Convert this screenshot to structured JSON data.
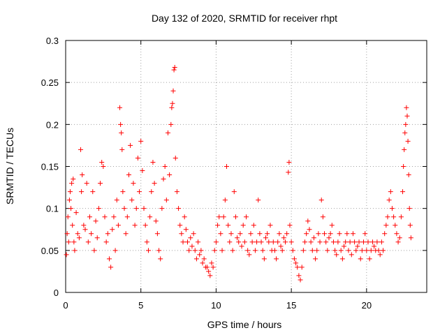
{
  "chart_data": {
    "type": "scatter",
    "title": "Day 132 of 2020, SRMTID for receiver rhpt",
    "xlabel": "GPS time / hours",
    "ylabel": "SRMTID / TECUs",
    "xlim": [
      0,
      24
    ],
    "ylim": [
      0,
      0.3
    ],
    "x_ticks": [
      0,
      5,
      10,
      15,
      20
    ],
    "x_tick_labels": [
      "0",
      "5",
      "10",
      "15",
      "20"
    ],
    "y_ticks": [
      0,
      0.05,
      0.1,
      0.15,
      0.2,
      0.25,
      0.3
    ],
    "y_tick_labels": [
      "0",
      "0.05",
      "0.1",
      "0.15",
      "0.2",
      "0.25",
      "0.3"
    ],
    "grid": true,
    "marker": "plus",
    "color": "#ff0000",
    "series": [
      {
        "name": "SRMTID",
        "points": [
          [
            0.05,
            0.045
          ],
          [
            0.1,
            0.07
          ],
          [
            0.15,
            0.09
          ],
          [
            0.2,
            0.06
          ],
          [
            0.25,
            0.11
          ],
          [
            0.3,
            0.12
          ],
          [
            0.35,
            0.1
          ],
          [
            0.4,
            0.13
          ],
          [
            0.45,
            0.08
          ],
          [
            0.5,
            0.135
          ],
          [
            0.55,
            0.06
          ],
          [
            0.6,
            0.05
          ],
          [
            0.7,
            0.095
          ],
          [
            0.8,
            0.07
          ],
          [
            0.9,
            0.065
          ],
          [
            1.0,
            0.17
          ],
          [
            1.05,
            0.12
          ],
          [
            1.1,
            0.14
          ],
          [
            1.2,
            0.08
          ],
          [
            1.3,
            0.075
          ],
          [
            1.4,
            0.13
          ],
          [
            1.5,
            0.06
          ],
          [
            1.6,
            0.09
          ],
          [
            1.7,
            0.07
          ],
          [
            1.8,
            0.12
          ],
          [
            1.9,
            0.05
          ],
          [
            2.0,
            0.085
          ],
          [
            2.1,
            0.065
          ],
          [
            2.2,
            0.1
          ],
          [
            2.3,
            0.13
          ],
          [
            2.4,
            0.155
          ],
          [
            2.5,
            0.15
          ],
          [
            2.6,
            0.09
          ],
          [
            2.7,
            0.06
          ],
          [
            2.8,
            0.07
          ],
          [
            2.9,
            0.04
          ],
          [
            3.0,
            0.03
          ],
          [
            3.1,
            0.075
          ],
          [
            3.2,
            0.09
          ],
          [
            3.3,
            0.05
          ],
          [
            3.4,
            0.11
          ],
          [
            3.5,
            0.08
          ],
          [
            3.6,
            0.22
          ],
          [
            3.65,
            0.2
          ],
          [
            3.7,
            0.19
          ],
          [
            3.75,
            0.17
          ],
          [
            3.8,
            0.12
          ],
          [
            3.9,
            0.1
          ],
          [
            4.0,
            0.07
          ],
          [
            4.1,
            0.09
          ],
          [
            4.2,
            0.14
          ],
          [
            4.3,
            0.175
          ],
          [
            4.4,
            0.11
          ],
          [
            4.5,
            0.13
          ],
          [
            4.6,
            0.08
          ],
          [
            4.7,
            0.1
          ],
          [
            4.8,
            0.16
          ],
          [
            4.9,
            0.12
          ],
          [
            5.0,
            0.18
          ],
          [
            5.1,
            0.145
          ],
          [
            5.2,
            0.1
          ],
          [
            5.3,
            0.08
          ],
          [
            5.4,
            0.06
          ],
          [
            5.5,
            0.05
          ],
          [
            5.6,
            0.09
          ],
          [
            5.7,
            0.12
          ],
          [
            5.8,
            0.155
          ],
          [
            5.9,
            0.13
          ],
          [
            6.0,
            0.085
          ],
          [
            6.1,
            0.07
          ],
          [
            6.2,
            0.05
          ],
          [
            6.3,
            0.04
          ],
          [
            6.4,
            0.1
          ],
          [
            6.5,
            0.135
          ],
          [
            6.6,
            0.15
          ],
          [
            6.7,
            0.11
          ],
          [
            6.8,
            0.19
          ],
          [
            6.9,
            0.14
          ],
          [
            7.0,
            0.2
          ],
          [
            7.05,
            0.22
          ],
          [
            7.1,
            0.225
          ],
          [
            7.15,
            0.24
          ],
          [
            7.2,
            0.265
          ],
          [
            7.25,
            0.268
          ],
          [
            7.3,
            0.16
          ],
          [
            7.4,
            0.12
          ],
          [
            7.5,
            0.1
          ],
          [
            7.6,
            0.08
          ],
          [
            7.7,
            0.07
          ],
          [
            7.8,
            0.06
          ],
          [
            7.9,
            0.09
          ],
          [
            8.0,
            0.075
          ],
          [
            8.1,
            0.06
          ],
          [
            8.2,
            0.05
          ],
          [
            8.3,
            0.065
          ],
          [
            8.4,
            0.055
          ],
          [
            8.5,
            0.07
          ],
          [
            8.6,
            0.05
          ],
          [
            8.7,
            0.04
          ],
          [
            8.8,
            0.06
          ],
          [
            8.9,
            0.045
          ],
          [
            9.0,
            0.05
          ],
          [
            9.1,
            0.035
          ],
          [
            9.2,
            0.04
          ],
          [
            9.3,
            0.03
          ],
          [
            9.4,
            0.03
          ],
          [
            9.5,
            0.025
          ],
          [
            9.6,
            0.02
          ],
          [
            9.7,
            0.035
          ],
          [
            9.8,
            0.03
          ],
          [
            9.9,
            0.05
          ],
          [
            10.0,
            0.06
          ],
          [
            10.1,
            0.08
          ],
          [
            10.2,
            0.09
          ],
          [
            10.3,
            0.07
          ],
          [
            10.4,
            0.05
          ],
          [
            10.5,
            0.09
          ],
          [
            10.6,
            0.11
          ],
          [
            10.7,
            0.15
          ],
          [
            10.8,
            0.08
          ],
          [
            10.9,
            0.06
          ],
          [
            11.0,
            0.07
          ],
          [
            11.1,
            0.05
          ],
          [
            11.2,
            0.12
          ],
          [
            11.3,
            0.09
          ],
          [
            11.4,
            0.065
          ],
          [
            11.5,
            0.06
          ],
          [
            11.6,
            0.07
          ],
          [
            11.7,
            0.055
          ],
          [
            11.8,
            0.08
          ],
          [
            11.9,
            0.06
          ],
          [
            12.0,
            0.09
          ],
          [
            12.1,
            0.05
          ],
          [
            12.2,
            0.045
          ],
          [
            12.3,
            0.07
          ],
          [
            12.4,
            0.06
          ],
          [
            12.5,
            0.08
          ],
          [
            12.6,
            0.05
          ],
          [
            12.7,
            0.06
          ],
          [
            12.8,
            0.11
          ],
          [
            12.9,
            0.07
          ],
          [
            13.0,
            0.06
          ],
          [
            13.1,
            0.05
          ],
          [
            13.2,
            0.04
          ],
          [
            13.3,
            0.065
          ],
          [
            13.4,
            0.07
          ],
          [
            13.5,
            0.06
          ],
          [
            13.6,
            0.08
          ],
          [
            13.7,
            0.05
          ],
          [
            13.8,
            0.06
          ],
          [
            13.9,
            0.05
          ],
          [
            14.0,
            0.04
          ],
          [
            14.1,
            0.06
          ],
          [
            14.2,
            0.07
          ],
          [
            14.3,
            0.055
          ],
          [
            14.4,
            0.05
          ],
          [
            14.5,
            0.065
          ],
          [
            14.6,
            0.06
          ],
          [
            14.7,
            0.07
          ],
          [
            14.8,
            0.143
          ],
          [
            14.85,
            0.155
          ],
          [
            14.9,
            0.08
          ],
          [
            15.0,
            0.06
          ],
          [
            15.1,
            0.05
          ],
          [
            15.2,
            0.04
          ],
          [
            15.3,
            0.035
          ],
          [
            15.4,
            0.03
          ],
          [
            15.5,
            0.02
          ],
          [
            15.6,
            0.015
          ],
          [
            15.7,
            0.03
          ],
          [
            15.8,
            0.05
          ],
          [
            15.9,
            0.06
          ],
          [
            16.0,
            0.07
          ],
          [
            16.1,
            0.085
          ],
          [
            16.2,
            0.075
          ],
          [
            16.3,
            0.06
          ],
          [
            16.4,
            0.05
          ],
          [
            16.5,
            0.065
          ],
          [
            16.6,
            0.04
          ],
          [
            16.7,
            0.05
          ],
          [
            16.8,
            0.07
          ],
          [
            16.9,
            0.06
          ],
          [
            17.0,
            0.11
          ],
          [
            17.1,
            0.09
          ],
          [
            17.2,
            0.07
          ],
          [
            17.3,
            0.06
          ],
          [
            17.4,
            0.05
          ],
          [
            17.5,
            0.065
          ],
          [
            17.6,
            0.07
          ],
          [
            17.7,
            0.08
          ],
          [
            17.8,
            0.06
          ],
          [
            17.9,
            0.05
          ],
          [
            18.0,
            0.045
          ],
          [
            18.1,
            0.06
          ],
          [
            18.2,
            0.07
          ],
          [
            18.3,
            0.05
          ],
          [
            18.4,
            0.04
          ],
          [
            18.5,
            0.055
          ],
          [
            18.6,
            0.06
          ],
          [
            18.7,
            0.07
          ],
          [
            18.8,
            0.05
          ],
          [
            18.9,
            0.06
          ],
          [
            19.0,
            0.045
          ],
          [
            19.1,
            0.07
          ],
          [
            19.2,
            0.06
          ],
          [
            19.3,
            0.05
          ],
          [
            19.4,
            0.055
          ],
          [
            19.5,
            0.06
          ],
          [
            19.6,
            0.04
          ],
          [
            19.7,
            0.05
          ],
          [
            19.8,
            0.06
          ],
          [
            19.9,
            0.07
          ],
          [
            20.0,
            0.05
          ],
          [
            20.1,
            0.06
          ],
          [
            20.2,
            0.04
          ],
          [
            20.3,
            0.05
          ],
          [
            20.4,
            0.06
          ],
          [
            20.5,
            0.055
          ],
          [
            20.6,
            0.05
          ],
          [
            20.7,
            0.06
          ],
          [
            20.8,
            0.05
          ],
          [
            20.9,
            0.045
          ],
          [
            21.0,
            0.06
          ],
          [
            21.1,
            0.05
          ],
          [
            21.2,
            0.07
          ],
          [
            21.3,
            0.08
          ],
          [
            21.4,
            0.09
          ],
          [
            21.5,
            0.11
          ],
          [
            21.6,
            0.12
          ],
          [
            21.7,
            0.1
          ],
          [
            21.8,
            0.09
          ],
          [
            21.9,
            0.08
          ],
          [
            22.0,
            0.07
          ],
          [
            22.1,
            0.06
          ],
          [
            22.2,
            0.065
          ],
          [
            22.3,
            0.09
          ],
          [
            22.4,
            0.12
          ],
          [
            22.45,
            0.15
          ],
          [
            22.5,
            0.17
          ],
          [
            22.55,
            0.19
          ],
          [
            22.6,
            0.2
          ],
          [
            22.65,
            0.22
          ],
          [
            22.7,
            0.21
          ],
          [
            22.75,
            0.18
          ],
          [
            22.8,
            0.14
          ],
          [
            22.85,
            0.1
          ],
          [
            22.9,
            0.08
          ],
          [
            22.95,
            0.065
          ]
        ]
      }
    ]
  }
}
